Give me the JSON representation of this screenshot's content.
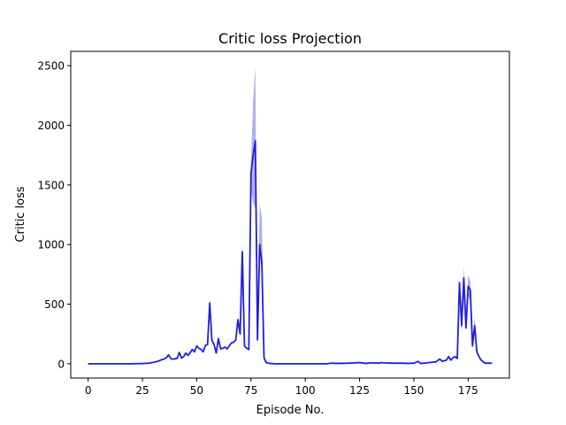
{
  "chart_data": {
    "type": "line",
    "title": "Critic loss Projection",
    "xlabel": "Episode No.",
    "ylabel": "Critic loss",
    "xlim": [
      -8,
      194
    ],
    "ylim": [
      -120,
      2620
    ],
    "xticks": [
      0,
      25,
      50,
      75,
      100,
      125,
      150,
      175
    ],
    "yticks": [
      0,
      500,
      1000,
      1500,
      2000,
      2500
    ],
    "grid": false,
    "legend": "none",
    "line_color": "#1f1fe0",
    "band_color": "#7b7be8",
    "series": [
      {
        "x": [
          0,
          5,
          10,
          15,
          20,
          25,
          28,
          30,
          32,
          34,
          35,
          36,
          37,
          38,
          39,
          40,
          41,
          42,
          43,
          44,
          45,
          46,
          47,
          48,
          49,
          50,
          51,
          52,
          53,
          54,
          55,
          56,
          57,
          58,
          59,
          60,
          61,
          62,
          63,
          64,
          65,
          66,
          67,
          68,
          69,
          70,
          71,
          72,
          73,
          74,
          75,
          76,
          77,
          78,
          79,
          80,
          81,
          82,
          83,
          84,
          86,
          90,
          100,
          110,
          112,
          115,
          120,
          125,
          128,
          130,
          134,
          135,
          136,
          140,
          145,
          147,
          150,
          152,
          153,
          155,
          157,
          160,
          162,
          163,
          165,
          166,
          167,
          168,
          169,
          170,
          171,
          172,
          173,
          174,
          175,
          176,
          177,
          178,
          179,
          180,
          181,
          182,
          183,
          184,
          185,
          186
        ],
        "y": [
          0,
          0,
          0,
          0,
          0,
          2,
          5,
          12,
          20,
          35,
          40,
          50,
          75,
          45,
          38,
          42,
          45,
          95,
          48,
          60,
          90,
          70,
          95,
          120,
          100,
          150,
          130,
          120,
          100,
          155,
          160,
          510,
          200,
          160,
          90,
          210,
          125,
          130,
          140,
          125,
          150,
          175,
          180,
          200,
          370,
          250,
          940,
          150,
          130,
          120,
          1600,
          1750,
          1870,
          200,
          1000,
          850,
          50,
          10,
          5,
          2,
          0,
          0,
          0,
          0,
          5,
          3,
          5,
          10,
          3,
          8,
          5,
          10,
          8,
          5,
          5,
          3,
          5,
          20,
          3,
          5,
          10,
          15,
          40,
          20,
          30,
          60,
          30,
          50,
          60,
          45,
          680,
          320,
          720,
          300,
          650,
          620,
          150,
          320,
          100,
          60,
          30,
          15,
          5,
          5,
          5,
          5
        ],
        "lower": [
          0,
          0,
          0,
          0,
          0,
          2,
          5,
          12,
          20,
          35,
          40,
          50,
          75,
          45,
          38,
          42,
          45,
          95,
          48,
          60,
          90,
          70,
          95,
          120,
          100,
          150,
          130,
          120,
          100,
          155,
          160,
          480,
          180,
          150,
          85,
          200,
          120,
          125,
          135,
          120,
          145,
          170,
          175,
          190,
          350,
          240,
          900,
          140,
          125,
          115,
          1450,
          1350,
          1300,
          180,
          900,
          780,
          40,
          8,
          4,
          2,
          0,
          0,
          0,
          0,
          5,
          3,
          5,
          10,
          3,
          8,
          5,
          10,
          8,
          5,
          5,
          3,
          5,
          20,
          3,
          5,
          10,
          15,
          40,
          20,
          30,
          60,
          30,
          50,
          60,
          45,
          600,
          260,
          560,
          280,
          560,
          540,
          130,
          280,
          90,
          50,
          25,
          12,
          5,
          5,
          5,
          5
        ],
        "upper": [
          0,
          0,
          0,
          0,
          0,
          2,
          5,
          12,
          20,
          35,
          40,
          50,
          75,
          45,
          38,
          42,
          45,
          95,
          48,
          60,
          90,
          70,
          95,
          120,
          100,
          150,
          130,
          120,
          100,
          155,
          160,
          540,
          220,
          170,
          95,
          220,
          130,
          135,
          145,
          130,
          155,
          180,
          185,
          210,
          390,
          260,
          1020,
          160,
          135,
          125,
          1700,
          2200,
          2500,
          220,
          1340,
          1230,
          70,
          12,
          6,
          2,
          0,
          0,
          0,
          0,
          5,
          3,
          5,
          10,
          3,
          8,
          5,
          10,
          8,
          5,
          5,
          3,
          5,
          20,
          3,
          5,
          10,
          15,
          40,
          20,
          30,
          60,
          30,
          50,
          60,
          45,
          700,
          380,
          820,
          320,
          740,
          700,
          170,
          400,
          110,
          70,
          35,
          18,
          5,
          5,
          5,
          5
        ]
      }
    ]
  }
}
